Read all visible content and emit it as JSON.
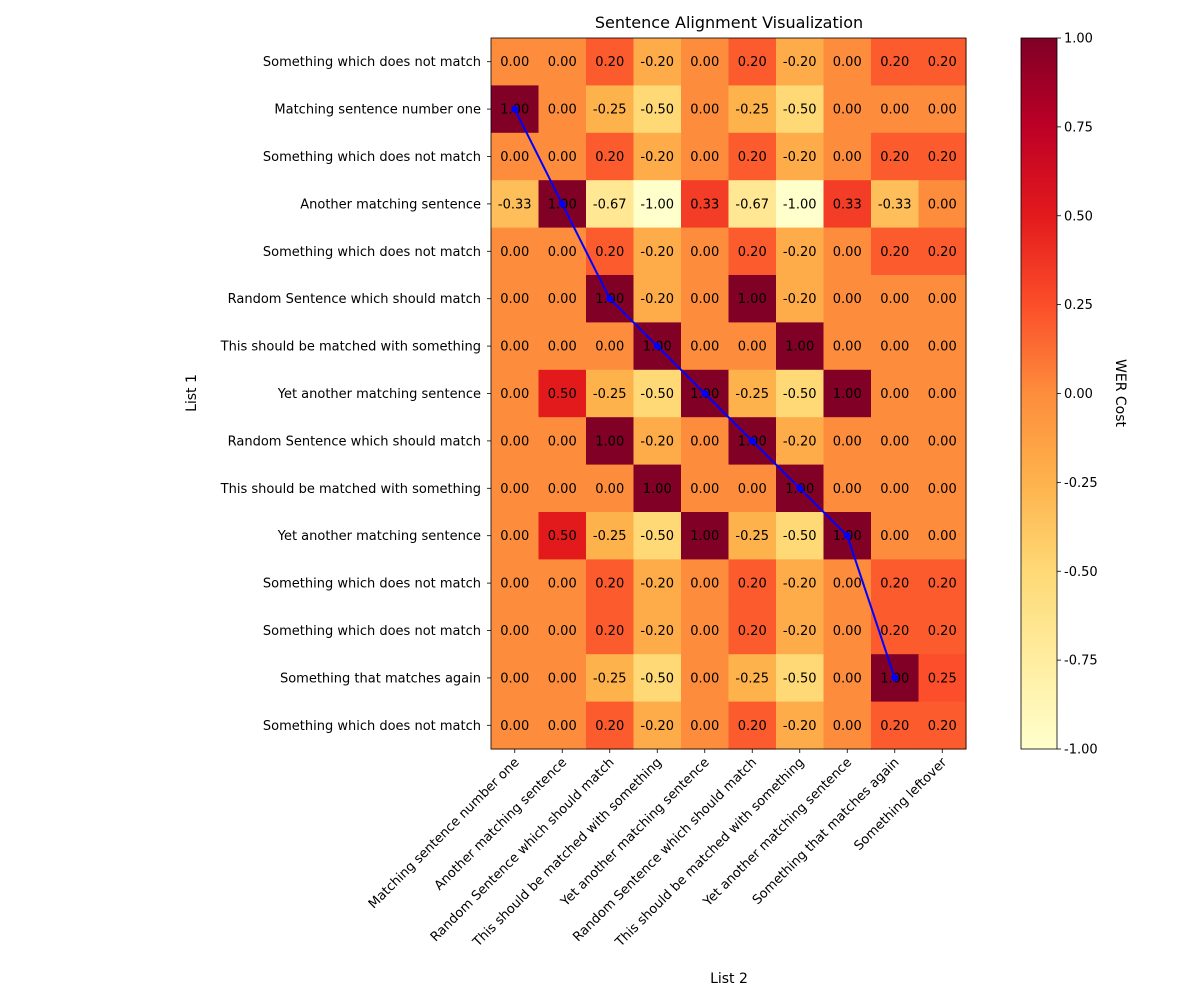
{
  "chart_data": {
    "type": "heatmap",
    "title": "Sentence Alignment Visualization",
    "xlabel": "List 2",
    "ylabel": "List 1",
    "colorbar": {
      "label": "WER Cost",
      "range": [
        -1.0,
        1.0
      ],
      "ticks": [
        "-1.00",
        "-0.75",
        "-0.50",
        "-0.25",
        "0.00",
        "0.25",
        "0.50",
        "0.75",
        "1.00"
      ],
      "colormap": "YlOrRd",
      "stops": [
        "#ffffcc",
        "#ffeda0",
        "#fed976",
        "#feb24c",
        "#fd8d3c",
        "#fc4e2a",
        "#e31a1c",
        "#bd0026",
        "#800026"
      ]
    },
    "x_categories": [
      "Matching sentence number one",
      "Another matching sentence",
      "Random Sentence which should match",
      "This should be matched with something",
      "Yet another matching sentence",
      "Random Sentence which should match",
      "This should be matched with something",
      "Yet another matching sentence",
      "Something that matches again",
      "Something leftover"
    ],
    "y_categories": [
      "Something which does not match",
      "Matching sentence number one",
      "Something which does not match",
      "Another matching sentence",
      "Something which does not match",
      "Random Sentence which should match",
      "This should be matched with something",
      "Yet another matching sentence",
      "Random Sentence which should match",
      "This should be matched with something",
      "Yet another matching sentence",
      "Something which does not match",
      "Something which does not match",
      "Something that matches again",
      "Something which does not match"
    ],
    "values": [
      [
        0.0,
        0.0,
        0.2,
        -0.2,
        0.0,
        0.2,
        -0.2,
        0.0,
        0.2,
        0.2
      ],
      [
        1.0,
        0.0,
        -0.25,
        -0.5,
        0.0,
        -0.25,
        -0.5,
        0.0,
        0.0,
        0.0
      ],
      [
        0.0,
        0.0,
        0.2,
        -0.2,
        0.0,
        0.2,
        -0.2,
        0.0,
        0.2,
        0.2
      ],
      [
        -0.33,
        1.0,
        -0.67,
        -1.0,
        0.33,
        -0.67,
        -1.0,
        0.33,
        -0.33,
        0.0
      ],
      [
        0.0,
        0.0,
        0.2,
        -0.2,
        0.0,
        0.2,
        -0.2,
        0.0,
        0.2,
        0.2
      ],
      [
        0.0,
        0.0,
        1.0,
        -0.2,
        0.0,
        1.0,
        -0.2,
        0.0,
        0.0,
        0.0
      ],
      [
        0.0,
        0.0,
        0.0,
        1.0,
        0.0,
        0.0,
        1.0,
        0.0,
        0.0,
        0.0
      ],
      [
        0.0,
        0.5,
        -0.25,
        -0.5,
        1.0,
        -0.25,
        -0.5,
        1.0,
        0.0,
        0.0
      ],
      [
        0.0,
        0.0,
        1.0,
        -0.2,
        0.0,
        1.0,
        -0.2,
        0.0,
        0.0,
        0.0
      ],
      [
        0.0,
        0.0,
        0.0,
        1.0,
        0.0,
        0.0,
        1.0,
        0.0,
        0.0,
        0.0
      ],
      [
        0.0,
        0.5,
        -0.25,
        -0.5,
        1.0,
        -0.25,
        -0.5,
        1.0,
        0.0,
        0.0
      ],
      [
        0.0,
        0.0,
        0.2,
        -0.2,
        0.0,
        0.2,
        -0.2,
        0.0,
        0.2,
        0.2
      ],
      [
        0.0,
        0.0,
        0.2,
        -0.2,
        0.0,
        0.2,
        -0.2,
        0.0,
        0.2,
        0.2
      ],
      [
        0.0,
        0.0,
        -0.25,
        -0.5,
        0.0,
        -0.25,
        -0.5,
        0.0,
        1.0,
        0.25
      ],
      [
        0.0,
        0.0,
        0.2,
        -0.2,
        0.0,
        0.2,
        -0.2,
        0.0,
        0.2,
        0.2
      ]
    ],
    "alignment_path": {
      "color": "#0000ff",
      "points": [
        {
          "x": "Matching sentence number one",
          "y": "Matching sentence number one",
          "col": 0,
          "row": 1
        },
        {
          "x": "Another matching sentence",
          "y": "Another matching sentence",
          "col": 1,
          "row": 3
        },
        {
          "x": "Random Sentence which should match",
          "y": "Random Sentence which should match",
          "col": 2,
          "row": 5
        },
        {
          "x": "This should be matched with something",
          "y": "This should be matched with something",
          "col": 3,
          "row": 6
        },
        {
          "x": "Yet another matching sentence",
          "y": "Yet another matching sentence",
          "col": 4,
          "row": 7
        },
        {
          "x": "Random Sentence which should match",
          "y": "Random Sentence which should match",
          "col": 5,
          "row": 8
        },
        {
          "x": "This should be matched with something",
          "y": "This should be matched with something",
          "col": 6,
          "row": 9
        },
        {
          "x": "Yet another matching sentence",
          "y": "Yet another matching sentence",
          "col": 7,
          "row": 10
        },
        {
          "x": "Something that matches again",
          "y": "Something that matches again",
          "col": 8,
          "row": 13
        }
      ]
    },
    "value_format": "2 decimals"
  }
}
